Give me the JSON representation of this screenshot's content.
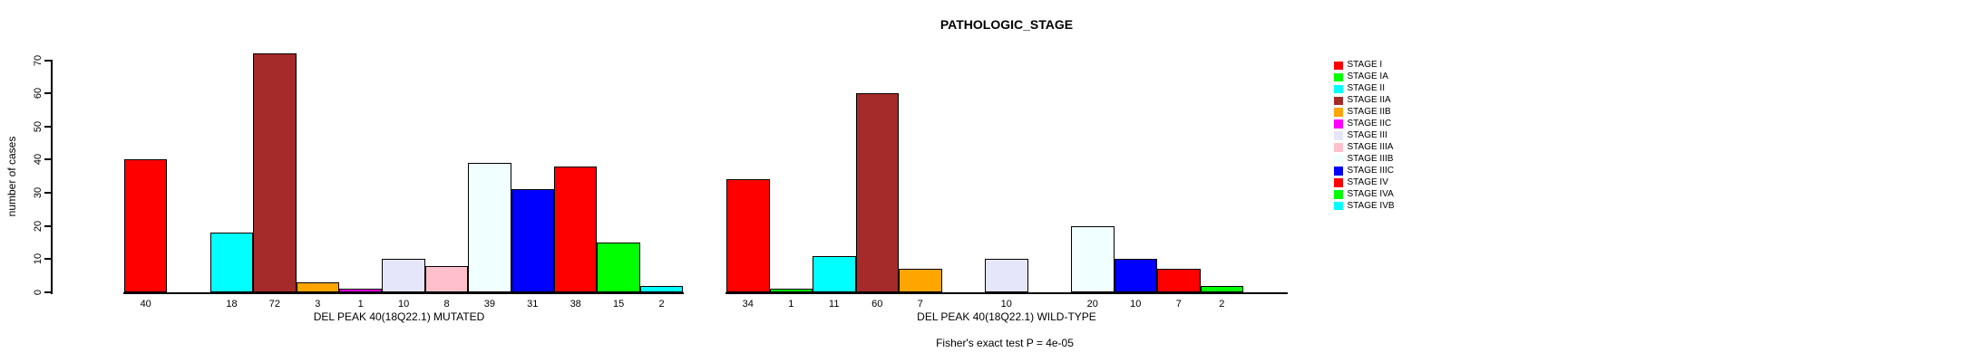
{
  "title": "PATHOLOGIC_STAGE",
  "footer_note": "Fisher's exact test P = 4e-05",
  "chart_data": {
    "type": "bar",
    "title": "PATHOLOGIC_STAGE",
    "ylabel": "number of cases",
    "ylim": [
      0,
      70
    ],
    "y_ticks": [
      0,
      10,
      20,
      30,
      40,
      50,
      60,
      70
    ],
    "grid": false,
    "legend_position": "right",
    "categories": [
      "STAGE I",
      "STAGE IA",
      "STAGE II",
      "STAGE IIA",
      "STAGE IIB",
      "STAGE IIC",
      "STAGE III",
      "STAGE IIIA",
      "STAGE IIIB",
      "STAGE IIIC",
      "STAGE IV",
      "STAGE IVA",
      "STAGE IVB"
    ],
    "colors": [
      "#FF0000",
      "#00FF00",
      "#00FFFF",
      "#A52A2A",
      "#FFA500",
      "#FF00FF",
      "#E6E6FA",
      "#FFC0CB",
      "#F0FFFF",
      "#0000FF",
      "#FF0000",
      "#00FF00",
      "#00FFFF"
    ],
    "series": [
      {
        "name": "DEL PEAK 40(18Q22.1) MUTATED",
        "values": [
          40,
          0,
          18,
          72,
          3,
          1,
          10,
          8,
          39,
          31,
          38,
          15,
          2
        ]
      },
      {
        "name": "DEL PEAK 40(18Q22.1) WILD-TYPE",
        "values": [
          34,
          1,
          11,
          60,
          7,
          0,
          10,
          0,
          20,
          10,
          7,
          2,
          0
        ]
      }
    ],
    "bar_label_rule": "each bar shows its value beneath it; zero-count stages have no bar and no label",
    "annotation": "Fisher's exact test P = 4e-05"
  }
}
